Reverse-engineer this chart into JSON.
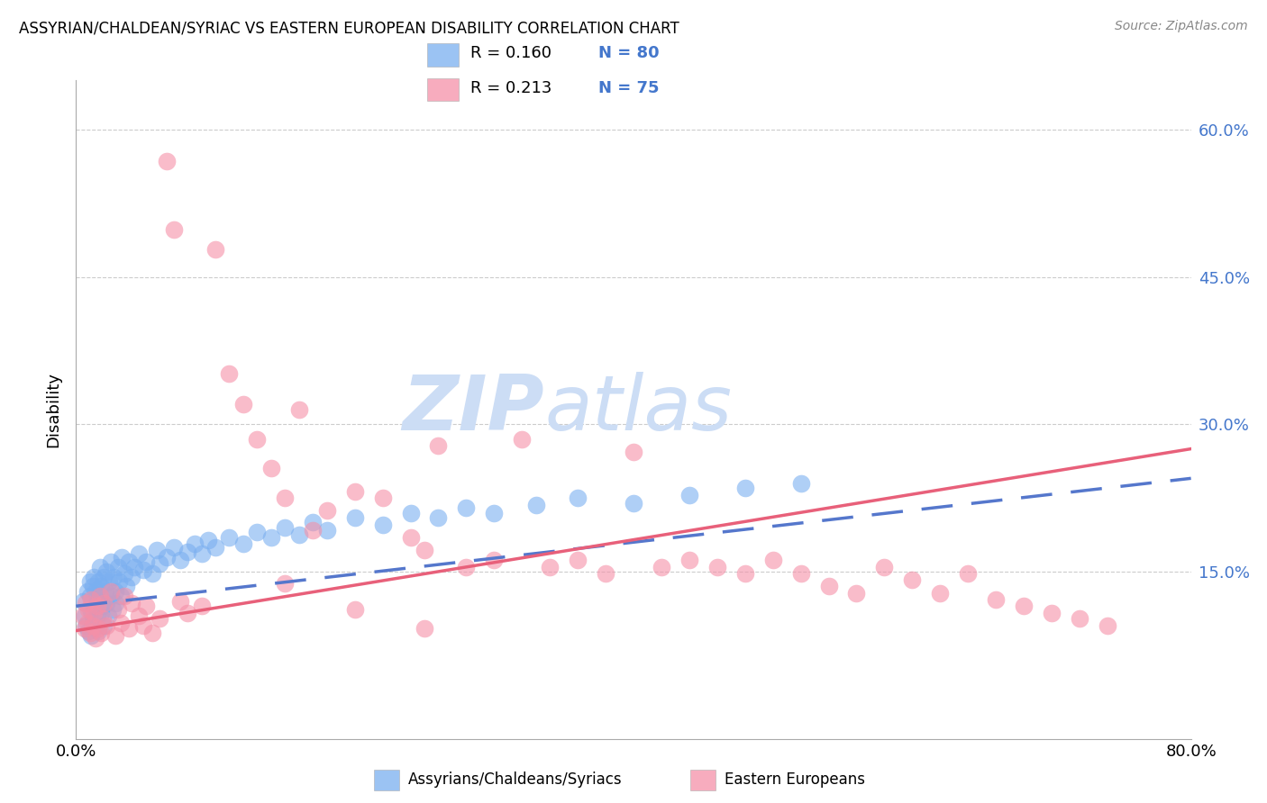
{
  "title": "ASSYRIAN/CHALDEAN/SYRIAC VS EASTERN EUROPEAN DISABILITY CORRELATION CHART",
  "source": "Source: ZipAtlas.com",
  "ylabel": "Disability",
  "xlim": [
    0.0,
    0.8
  ],
  "ylim": [
    -0.02,
    0.65
  ],
  "legend_r1": "R = 0.160",
  "legend_n1": "N = 80",
  "legend_r2": "R = 0.213",
  "legend_n2": "N = 75",
  "color_blue": "#7aaff0",
  "color_pink": "#f590a8",
  "color_blue_line": "#5577cc",
  "color_pink_line": "#e8607a",
  "color_blue_text": "#4477cc",
  "watermark_color": "#ccddf5",
  "assyrian_x": [
    0.005,
    0.006,
    0.007,
    0.008,
    0.009,
    0.01,
    0.01,
    0.011,
    0.011,
    0.012,
    0.012,
    0.013,
    0.013,
    0.014,
    0.014,
    0.015,
    0.015,
    0.016,
    0.016,
    0.017,
    0.017,
    0.018,
    0.018,
    0.019,
    0.02,
    0.02,
    0.021,
    0.022,
    0.022,
    0.023,
    0.024,
    0.025,
    0.025,
    0.026,
    0.027,
    0.028,
    0.028,
    0.03,
    0.031,
    0.032,
    0.033,
    0.035,
    0.036,
    0.038,
    0.04,
    0.042,
    0.045,
    0.048,
    0.05,
    0.055,
    0.058,
    0.06,
    0.065,
    0.07,
    0.075,
    0.08,
    0.085,
    0.09,
    0.095,
    0.1,
    0.11,
    0.12,
    0.13,
    0.14,
    0.15,
    0.16,
    0.17,
    0.18,
    0.2,
    0.22,
    0.24,
    0.26,
    0.28,
    0.3,
    0.33,
    0.36,
    0.4,
    0.44,
    0.48,
    0.52
  ],
  "assyrian_y": [
    0.12,
    0.105,
    0.095,
    0.13,
    0.09,
    0.125,
    0.14,
    0.11,
    0.085,
    0.135,
    0.1,
    0.115,
    0.145,
    0.095,
    0.13,
    0.12,
    0.105,
    0.14,
    0.09,
    0.125,
    0.155,
    0.108,
    0.135,
    0.115,
    0.145,
    0.095,
    0.13,
    0.118,
    0.15,
    0.105,
    0.14,
    0.125,
    0.16,
    0.112,
    0.145,
    0.13,
    0.118,
    0.155,
    0.14,
    0.125,
    0.165,
    0.148,
    0.135,
    0.16,
    0.145,
    0.155,
    0.168,
    0.152,
    0.16,
    0.148,
    0.172,
    0.158,
    0.165,
    0.175,
    0.162,
    0.17,
    0.178,
    0.168,
    0.182,
    0.175,
    0.185,
    0.178,
    0.19,
    0.185,
    0.195,
    0.188,
    0.2,
    0.192,
    0.205,
    0.198,
    0.21,
    0.205,
    0.215,
    0.21,
    0.218,
    0.225,
    0.22,
    0.228,
    0.235,
    0.24
  ],
  "eastern_x": [
    0.005,
    0.006,
    0.007,
    0.008,
    0.009,
    0.01,
    0.011,
    0.012,
    0.013,
    0.014,
    0.015,
    0.016,
    0.017,
    0.018,
    0.019,
    0.02,
    0.022,
    0.025,
    0.028,
    0.03,
    0.032,
    0.035,
    0.038,
    0.04,
    0.045,
    0.048,
    0.05,
    0.055,
    0.06,
    0.065,
    0.07,
    0.075,
    0.08,
    0.09,
    0.1,
    0.11,
    0.12,
    0.13,
    0.14,
    0.15,
    0.16,
    0.17,
    0.18,
    0.2,
    0.22,
    0.24,
    0.25,
    0.26,
    0.28,
    0.3,
    0.32,
    0.34,
    0.36,
    0.38,
    0.4,
    0.42,
    0.44,
    0.46,
    0.48,
    0.5,
    0.52,
    0.54,
    0.56,
    0.58,
    0.6,
    0.62,
    0.64,
    0.66,
    0.68,
    0.7,
    0.72,
    0.74,
    0.15,
    0.2,
    0.25
  ],
  "eastern_y": [
    0.105,
    0.092,
    0.118,
    0.098,
    0.112,
    0.088,
    0.122,
    0.095,
    0.108,
    0.082,
    0.115,
    0.092,
    0.125,
    0.088,
    0.102,
    0.118,
    0.095,
    0.13,
    0.085,
    0.112,
    0.098,
    0.125,
    0.092,
    0.118,
    0.105,
    0.095,
    0.115,
    0.088,
    0.102,
    0.568,
    0.498,
    0.12,
    0.108,
    0.115,
    0.478,
    0.352,
    0.32,
    0.285,
    0.255,
    0.225,
    0.315,
    0.192,
    0.212,
    0.232,
    0.225,
    0.185,
    0.172,
    0.278,
    0.155,
    0.162,
    0.285,
    0.155,
    0.162,
    0.148,
    0.272,
    0.155,
    0.162,
    0.155,
    0.148,
    0.162,
    0.148,
    0.135,
    0.128,
    0.155,
    0.142,
    0.128,
    0.148,
    0.122,
    0.115,
    0.108,
    0.102,
    0.095,
    0.138,
    0.112,
    0.092
  ]
}
